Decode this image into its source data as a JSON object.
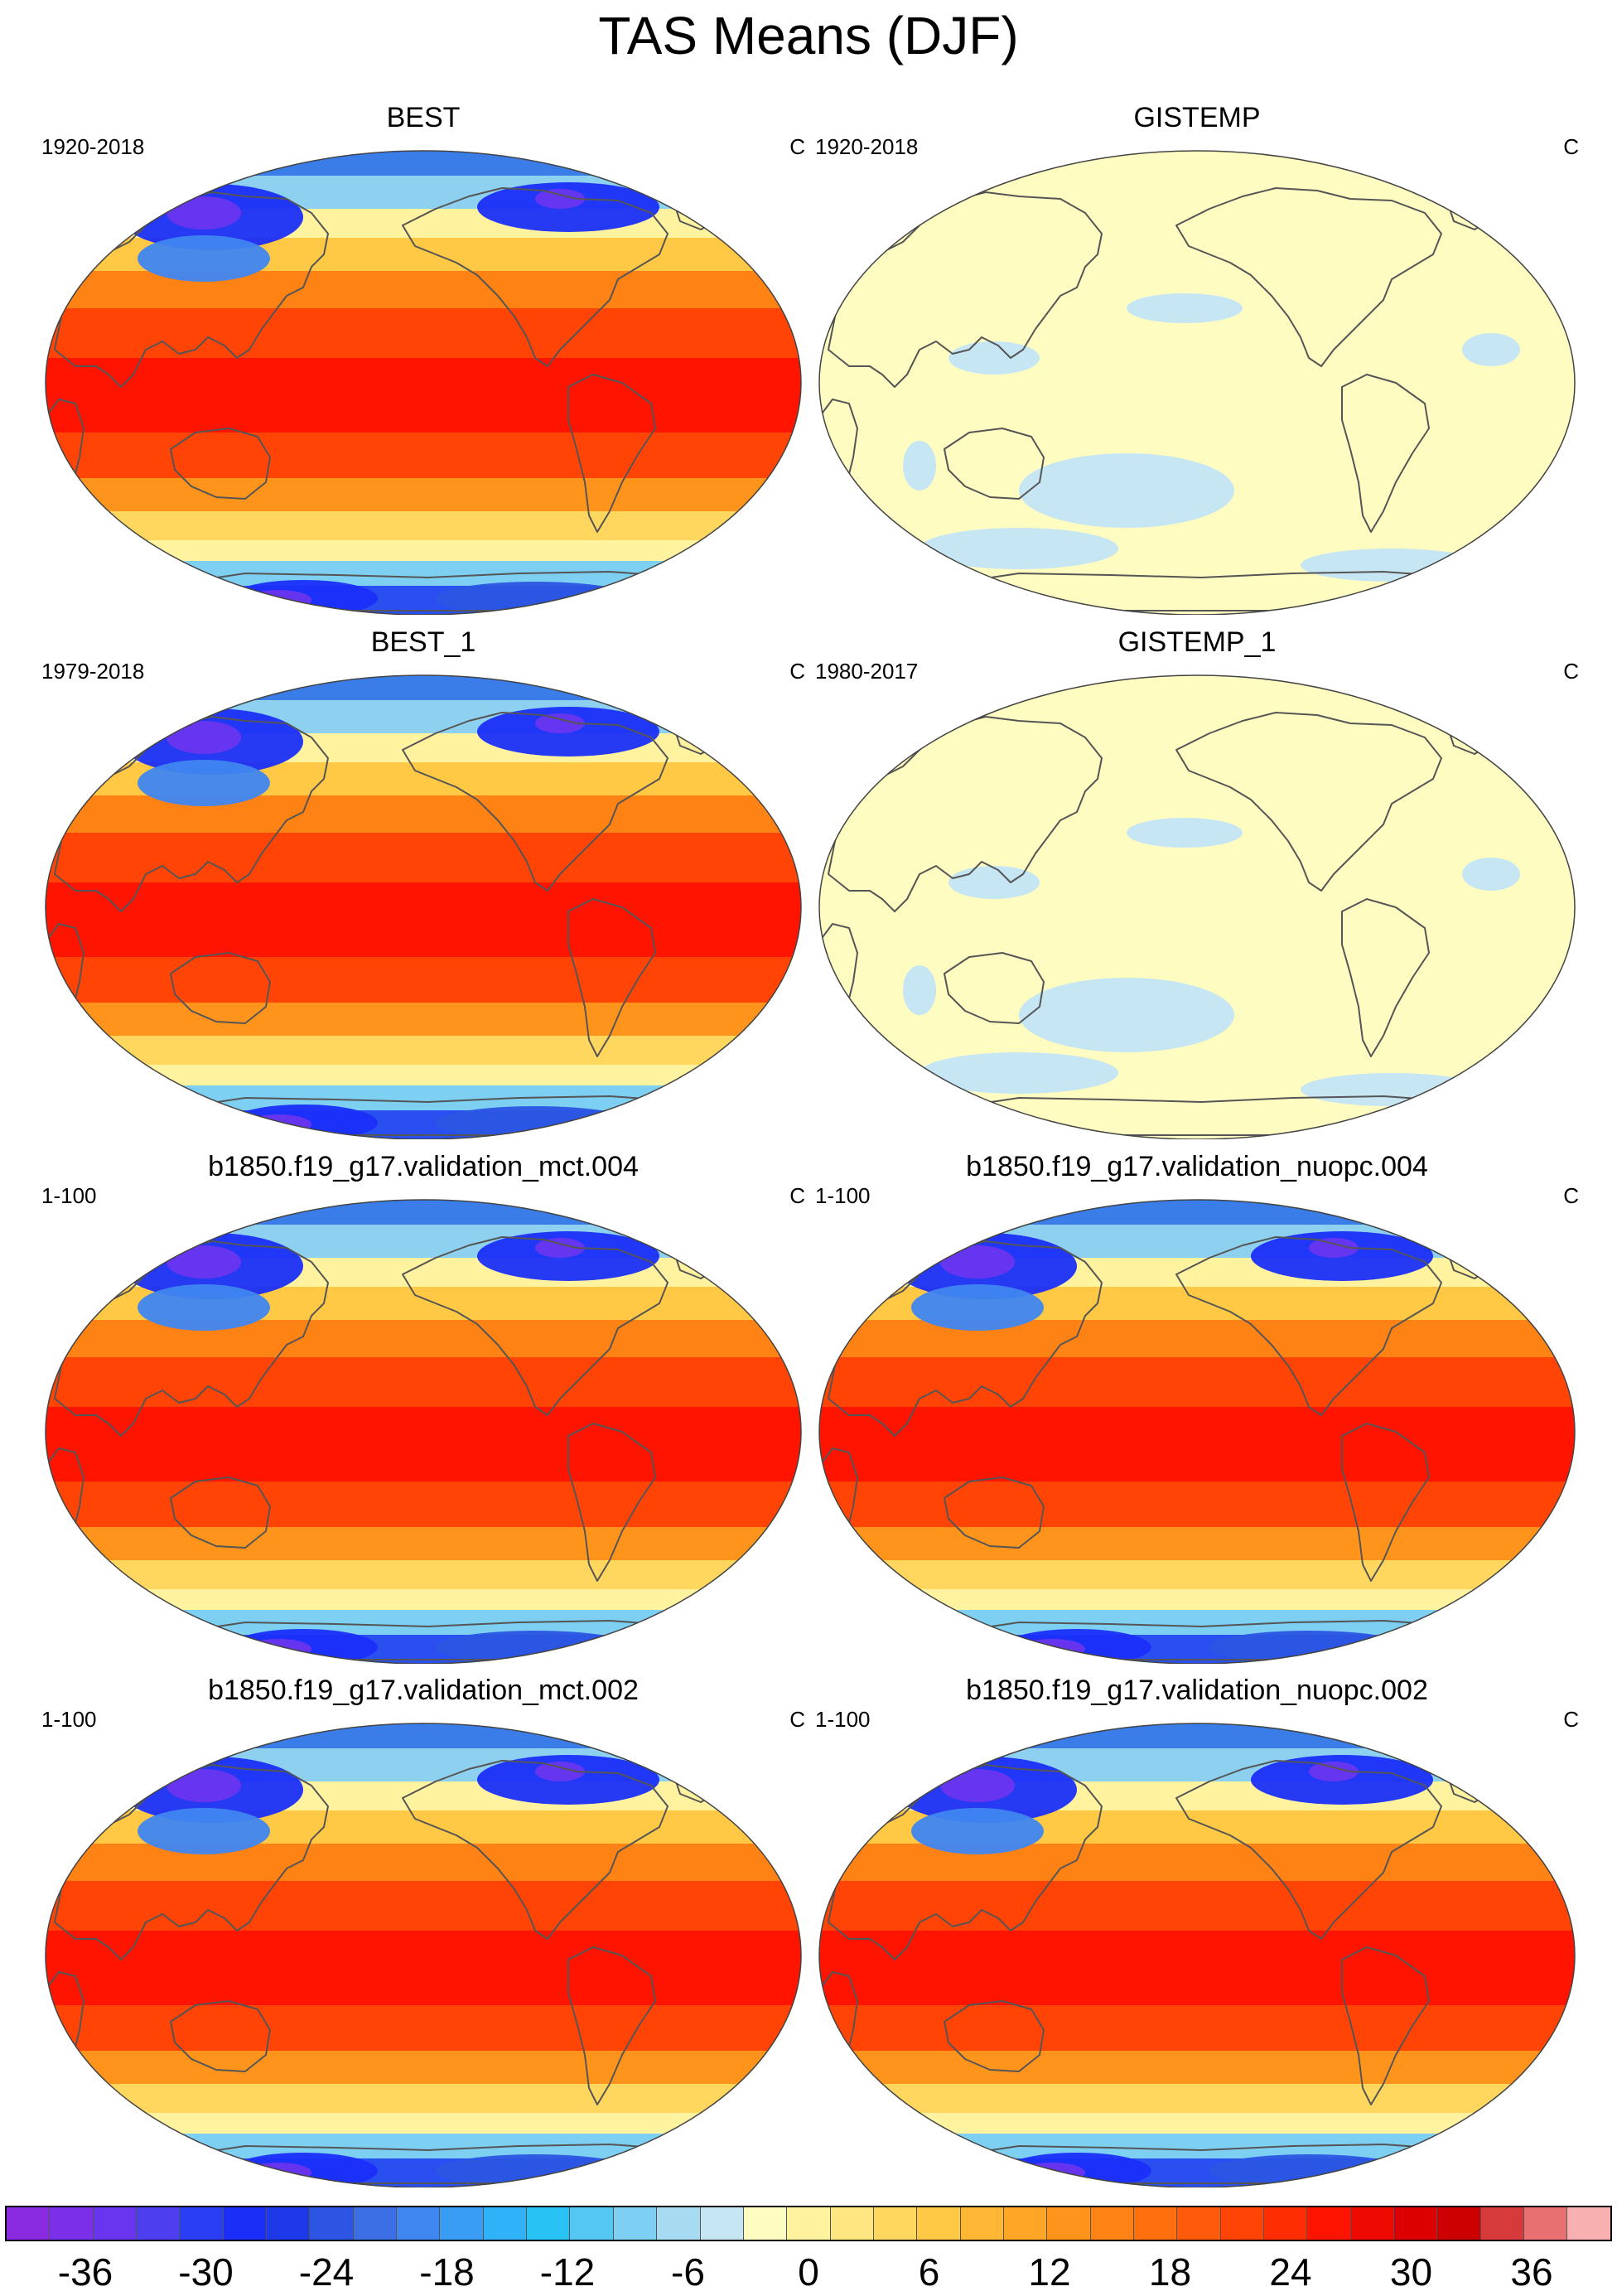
{
  "figure": {
    "title": "TAS Means (DJF)"
  },
  "panels": [
    {
      "title": "BEST",
      "period": "1920-2018",
      "units": "C",
      "style": "full"
    },
    {
      "title": "GISTEMP",
      "period": "1920-2018",
      "units": "C",
      "style": "pale"
    },
    {
      "title": "BEST_1",
      "period": "1979-2018",
      "units": "C",
      "style": "full"
    },
    {
      "title": "GISTEMP_1",
      "period": "1980-2017",
      "units": "C",
      "style": "pale"
    },
    {
      "title": "b1850.f19_g17.validation_mct.004",
      "period": "1-100",
      "units": "C",
      "style": "full"
    },
    {
      "title": "b1850.f19_g17.validation_nuopc.004",
      "period": "1-100",
      "units": "C",
      "style": "full"
    },
    {
      "title": "b1850.f19_g17.validation_mct.002",
      "period": "1-100",
      "units": "C",
      "style": "full"
    },
    {
      "title": "b1850.f19_g17.validation_nuopc.002",
      "period": "1-100",
      "units": "C",
      "style": "full"
    }
  ],
  "colorbar": {
    "colors": [
      "#8a2be2",
      "#7a2fe8",
      "#6a35ee",
      "#4d3ff0",
      "#2a3ff5",
      "#1a2ef8",
      "#1e3ae8",
      "#2b55e2",
      "#3c6ee6",
      "#3f86f0",
      "#3a9df5",
      "#2fb2f7",
      "#28c2f5",
      "#54c8f2",
      "#7dd0f2",
      "#a6dbf2",
      "#c6e6f4",
      "#fffcc2",
      "#fff3a0",
      "#ffe680",
      "#ffd75e",
      "#ffc845",
      "#ffb734",
      "#ffa626",
      "#ff941c",
      "#ff8214",
      "#ff6f0e",
      "#ff5a09",
      "#ff4405",
      "#ff2e02",
      "#ff1400",
      "#ee0a00",
      "#dd0000",
      "#cc0000",
      "#d63a3a",
      "#e87070",
      "#f8b0b0"
    ],
    "tick_labels": [
      "-36",
      "-30",
      "-24",
      "-18",
      "-12",
      "-6",
      "0",
      "6",
      "12",
      "18",
      "24",
      "30",
      "36"
    ],
    "tick_values": [
      -36,
      -30,
      -24,
      -18,
      -12,
      -6,
      0,
      6,
      12,
      18,
      24,
      30,
      36
    ],
    "range": [
      -40,
      40
    ]
  }
}
